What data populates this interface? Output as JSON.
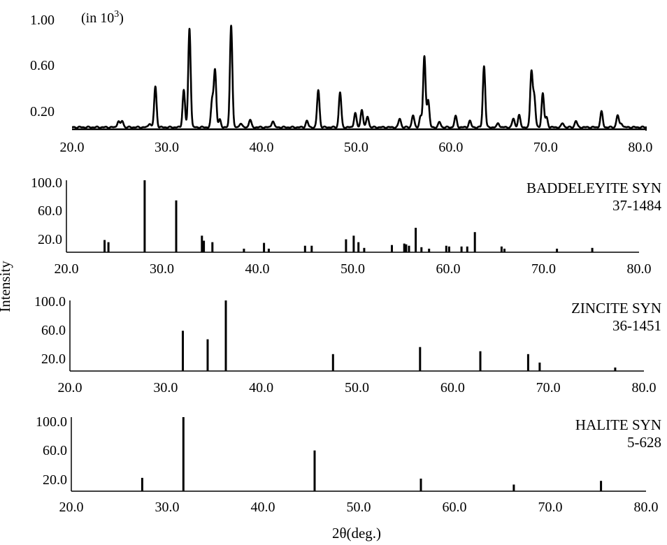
{
  "chart_data": [
    {
      "type": "line",
      "title": "",
      "unit_note": "(in 10",
      "unit_exponent": "3",
      "unit_close": ")",
      "xlabel": "",
      "ylabel": "",
      "xlim": [
        20,
        80.6
      ],
      "ylim": [
        0.05,
        1.0
      ],
      "xticks": [
        "20.0",
        "30.0",
        "40.0",
        "50.0",
        "60.0",
        "70.0",
        "80.0"
      ],
      "yticks": [
        "1.00",
        "0.60",
        "0.20"
      ],
      "baseline": 0.065,
      "peaks": [
        {
          "x": 24.9,
          "y": 0.12
        },
        {
          "x": 25.3,
          "y": 0.12
        },
        {
          "x": 28.2,
          "y": 0.1
        },
        {
          "x": 28.8,
          "y": 0.42
        },
        {
          "x": 31.8,
          "y": 0.39
        },
        {
          "x": 32.4,
          "y": 0.93
        },
        {
          "x": 34.8,
          "y": 0.3
        },
        {
          "x": 35.1,
          "y": 0.56
        },
        {
          "x": 35.6,
          "y": 0.13
        },
        {
          "x": 36.8,
          "y": 0.96
        },
        {
          "x": 37.8,
          "y": 0.1
        },
        {
          "x": 38.8,
          "y": 0.13
        },
        {
          "x": 41.2,
          "y": 0.12
        },
        {
          "x": 44.8,
          "y": 0.12
        },
        {
          "x": 46.0,
          "y": 0.39
        },
        {
          "x": 48.3,
          "y": 0.37
        },
        {
          "x": 49.9,
          "y": 0.19
        },
        {
          "x": 50.6,
          "y": 0.22
        },
        {
          "x": 51.2,
          "y": 0.16
        },
        {
          "x": 54.6,
          "y": 0.14
        },
        {
          "x": 56.0,
          "y": 0.17
        },
        {
          "x": 56.8,
          "y": 0.16
        },
        {
          "x": 57.2,
          "y": 0.68
        },
        {
          "x": 57.6,
          "y": 0.3
        },
        {
          "x": 58.8,
          "y": 0.11
        },
        {
          "x": 60.5,
          "y": 0.16
        },
        {
          "x": 62.0,
          "y": 0.12
        },
        {
          "x": 63.5,
          "y": 0.6
        },
        {
          "x": 65.0,
          "y": 0.1
        },
        {
          "x": 66.6,
          "y": 0.14
        },
        {
          "x": 67.2,
          "y": 0.17
        },
        {
          "x": 68.5,
          "y": 0.55
        },
        {
          "x": 68.8,
          "y": 0.33
        },
        {
          "x": 69.7,
          "y": 0.36
        },
        {
          "x": 70.1,
          "y": 0.15
        },
        {
          "x": 71.8,
          "y": 0.1
        },
        {
          "x": 73.2,
          "y": 0.12
        },
        {
          "x": 75.9,
          "y": 0.2
        },
        {
          "x": 77.6,
          "y": 0.17
        },
        {
          "x": 78.0,
          "y": 0.1
        }
      ]
    },
    {
      "type": "bar",
      "label": "BADDELEYITE SYN",
      "code": "37-1484",
      "xlim": [
        20,
        80
      ],
      "ylim": [
        0,
        100
      ],
      "xticks": [
        "20.0",
        "30.0",
        "40.0",
        "50.0",
        "60.0",
        "70.0",
        "80.0"
      ],
      "yticks": [
        "100.0",
        "60.0",
        "20.0"
      ],
      "x": [
        24.0,
        24.4,
        28.2,
        31.5,
        34.2,
        34.4,
        35.3,
        38.6,
        40.7,
        41.2,
        45.0,
        45.7,
        49.3,
        50.1,
        50.6,
        51.2,
        54.1,
        55.4,
        55.6,
        55.9,
        56.6,
        57.2,
        58.0,
        59.8,
        60.1,
        61.4,
        62.0,
        62.8,
        65.6,
        65.9,
        71.4,
        75.1
      ],
      "values": [
        17,
        14,
        100,
        72,
        23,
        16,
        14,
        5,
        13,
        5,
        9,
        9,
        18,
        23,
        14,
        6,
        10,
        12,
        11,
        9,
        34,
        7,
        5,
        9,
        8,
        8,
        8,
        28,
        8,
        5,
        5,
        6
      ]
    },
    {
      "type": "bar",
      "label": "ZINCITE SYN",
      "code": "36-1451",
      "xlim": [
        20,
        80
      ],
      "ylim": [
        0,
        100
      ],
      "xticks": [
        "20.0",
        "30.0",
        "40.0",
        "50.0",
        "60.0",
        "70.0",
        "80.0"
      ],
      "yticks": [
        "100.0",
        "60.0",
        "20.0"
      ],
      "x": [
        31.8,
        34.4,
        36.3,
        47.5,
        56.6,
        62.9,
        67.9,
        69.1,
        77.0
      ],
      "values": [
        57,
        45,
        100,
        24,
        34,
        28,
        24,
        12,
        5
      ]
    },
    {
      "type": "bar",
      "label": "HALITE SYN",
      "code": "5-628",
      "xlim": [
        20,
        80
      ],
      "ylim": [
        0,
        100
      ],
      "xticks": [
        "20.0",
        "30.0",
        "40.0",
        "50.0",
        "60.0",
        "70.0",
        "80.0"
      ],
      "yticks": [
        "100.0",
        "60.0",
        "20.0"
      ],
      "x": [
        27.4,
        31.7,
        45.4,
        56.5,
        66.2,
        75.3
      ],
      "values": [
        18,
        100,
        55,
        17,
        9,
        14
      ]
    }
  ],
  "shared_xlabel": "2θ(deg.)",
  "shared_ylabel": "Intensity"
}
